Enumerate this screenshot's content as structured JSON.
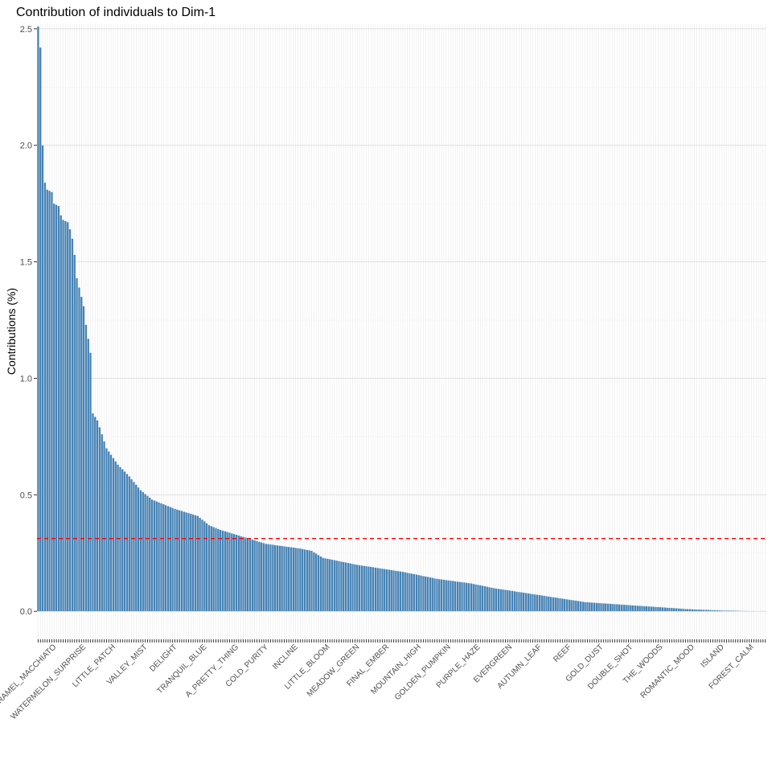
{
  "chart_data": {
    "type": "bar",
    "title": "Contribution of individuals to Dim-1",
    "xlabel": "",
    "ylabel": "Contributions (%)",
    "ylim": [
      -0.12,
      2.52
    ],
    "yticks": [
      "0.0",
      "0.5",
      "1.0",
      "1.5",
      "2.0",
      "2.5"
    ],
    "grid": true,
    "legend": "none",
    "bar_count": 320,
    "reference_line": {
      "value": 0.3125,
      "color": "#ff0000",
      "style": "dashed"
    },
    "bar_color": "#4682B4",
    "anchors": [
      [
        0,
        2.51
      ],
      [
        1,
        2.42
      ],
      [
        2,
        2.0
      ],
      [
        3,
        1.84
      ],
      [
        4,
        1.81
      ],
      [
        6,
        1.8
      ],
      [
        7,
        1.75
      ],
      [
        9,
        1.74
      ],
      [
        10,
        1.7
      ],
      [
        11,
        1.68
      ],
      [
        13,
        1.67
      ],
      [
        14,
        1.64
      ],
      [
        15,
        1.6
      ],
      [
        16,
        1.53
      ],
      [
        17,
        1.43
      ],
      [
        18,
        1.39
      ],
      [
        19,
        1.35
      ],
      [
        20,
        1.31
      ],
      [
        21,
        1.23
      ],
      [
        22,
        1.17
      ],
      [
        23,
        1.11
      ],
      [
        24,
        0.85
      ],
      [
        26,
        0.82
      ],
      [
        28,
        0.76
      ],
      [
        30,
        0.7
      ],
      [
        35,
        0.63
      ],
      [
        40,
        0.58
      ],
      [
        45,
        0.52
      ],
      [
        50,
        0.48
      ],
      [
        60,
        0.44
      ],
      [
        70,
        0.41
      ],
      [
        75,
        0.37
      ],
      [
        80,
        0.35
      ],
      [
        90,
        0.32
      ],
      [
        100,
        0.29
      ],
      [
        115,
        0.27
      ],
      [
        120,
        0.26
      ],
      [
        125,
        0.23
      ],
      [
        140,
        0.2
      ],
      [
        160,
        0.17
      ],
      [
        175,
        0.14
      ],
      [
        190,
        0.12
      ],
      [
        200,
        0.1
      ],
      [
        220,
        0.07
      ],
      [
        240,
        0.04
      ],
      [
        255,
        0.03
      ],
      [
        270,
        0.02
      ],
      [
        285,
        0.01
      ],
      [
        300,
        0.004
      ],
      [
        319,
        0.0
      ]
    ],
    "labels": [
      "CARAMEL_MACCHIATO",
      "WATERMELON_SURPRISE",
      "LITTLE_PATCH",
      "VALLEY_MIST",
      "DELIGHT",
      "TRANQUIL_BLUE",
      "A_PRETTY_THING",
      "COLD_PURITY",
      "INCLINE",
      "LITTLE_BLOOM",
      "MEADOW_GREEN",
      "FINAL_EMBER",
      "MOUNTAIN_HIGH",
      "GOLDEN_PUMPKIN",
      "PURPLE_HAZE",
      "EVERGREEN",
      "AUTUMN_LEAF",
      "REEF",
      "GOLD_DUST",
      "DOUBLE_SHOT",
      "THE_WOODS",
      "ROMANTIC_MOOD",
      "ISLAND",
      "FOREST_CALM"
    ]
  }
}
